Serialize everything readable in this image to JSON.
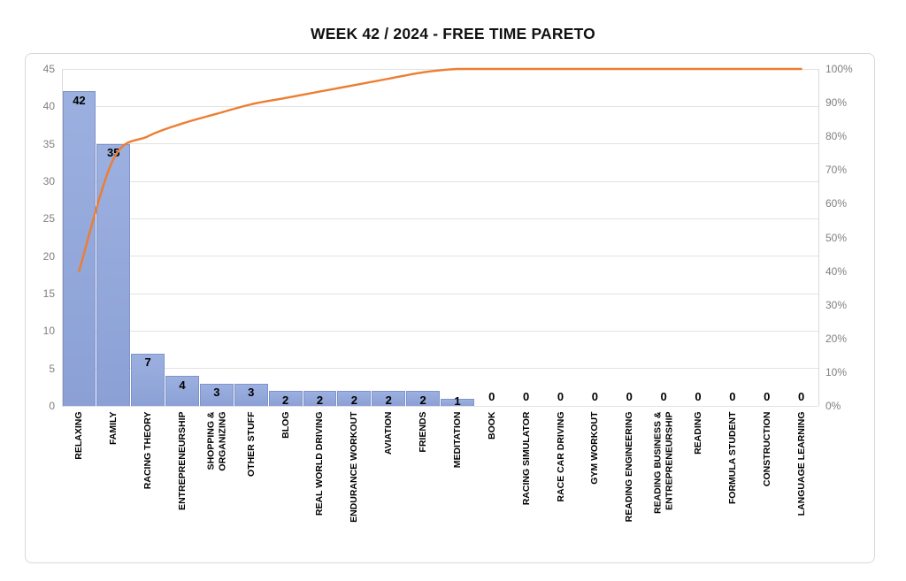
{
  "title": "WEEK 42 / 2024  - FREE TIME PARETO",
  "chart_data": {
    "type": "bar",
    "subtype": "pareto-combo",
    "title": "WEEK 42 / 2024  - FREE TIME PARETO",
    "categories": [
      "RELAXING",
      "FAMILY",
      "RACING THEORY",
      "ENTREPRENEURSHIP",
      "SHOPPING &\nORGANIZING",
      "OTHER STUFF",
      "BLOG",
      "REAL WORLD DRIVING",
      "ENDURANCE WORKOUT",
      "AVIATION",
      "FRIENDS",
      "MEDITATION",
      "BOOK",
      "RACING SIMULATOR",
      "RACE CAR DRIVING",
      "GYM WORKOUT",
      "READING ENGINEERING",
      "READING BUSINESS &\nENTREPRENEURSHIP",
      "READING",
      "FORMULA STUDENT",
      "CONSTRUCTION",
      "LANGUAGE LEARNING"
    ],
    "series": [
      {
        "name": "count",
        "type": "bar",
        "values": [
          42,
          35,
          7,
          4,
          3,
          3,
          2,
          2,
          2,
          2,
          2,
          1,
          0,
          0,
          0,
          0,
          0,
          0,
          0,
          0,
          0,
          0
        ]
      },
      {
        "name": "cumulative-percent",
        "type": "line",
        "values": [
          40.0,
          73.3,
          80.0,
          83.8,
          86.7,
          89.5,
          91.4,
          93.3,
          95.2,
          97.1,
          99.0,
          100,
          100,
          100,
          100,
          100,
          100,
          100,
          100,
          100,
          100,
          100
        ]
      }
    ],
    "left_axis": {
      "min": 0,
      "max": 45,
      "step": 5,
      "ticks": [
        "0",
        "5",
        "10",
        "15",
        "20",
        "25",
        "30",
        "35",
        "40",
        "45"
      ]
    },
    "right_axis": {
      "min": 0,
      "max": 100,
      "step": 10,
      "ticks": [
        "0%",
        "10%",
        "20%",
        "30%",
        "40%",
        "50%",
        "60%",
        "70%",
        "80%",
        "90%",
        "100%"
      ]
    },
    "grid": true,
    "legend": "none",
    "colors": {
      "bar_fill": "#94A9DB",
      "bar_border": "#7E93CC",
      "line": "#ED7D31",
      "axis_label": "#7F7F7F",
      "gridline": "#E2E2E2",
      "data_label": "#000000",
      "category_label": "#000000"
    }
  }
}
